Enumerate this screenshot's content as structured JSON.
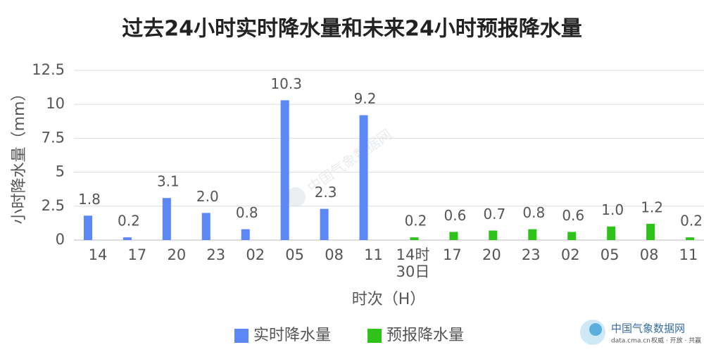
{
  "chart_data": {
    "type": "bar",
    "title": "过去24小时实时降水量和未来24小时预报降水量",
    "x_label": "时次（H）",
    "y_label": "小时降水量（mm）",
    "categories": [
      "14",
      "17",
      "20",
      "23",
      "02",
      "05",
      "08",
      "11",
      "14时\n30日",
      "17",
      "20",
      "23",
      "02",
      "05",
      "08",
      "11"
    ],
    "series": [
      {
        "name": "实时降水量",
        "color": "#5b87f7",
        "values": [
          1.8,
          0.2,
          3.1,
          2.0,
          0.8,
          10.3,
          2.3,
          9.2,
          null,
          null,
          null,
          null,
          null,
          null,
          null,
          null
        ],
        "value_labels": [
          "1.8",
          "0.2",
          "3.1",
          "2.0",
          "0.8",
          "10.3",
          "2.3",
          "9.2",
          null,
          null,
          null,
          null,
          null,
          null,
          null,
          null
        ]
      },
      {
        "name": "预报降水量",
        "color": "#2fc21a",
        "values": [
          null,
          null,
          null,
          null,
          null,
          null,
          null,
          null,
          0.2,
          0.6,
          0.7,
          0.8,
          0.6,
          1.0,
          1.2,
          0.2
        ],
        "value_labels": [
          null,
          null,
          null,
          null,
          null,
          null,
          null,
          null,
          "0.2",
          "0.6",
          "0.7",
          "0.8",
          "0.6",
          "1.0",
          "1.2",
          "0.2"
        ]
      }
    ],
    "ylim": [
      0,
      12.5
    ],
    "yticks": [
      0,
      2.5,
      5,
      7.5,
      10,
      12.5
    ],
    "grid": true,
    "legend": "bottom"
  },
  "watermark": {
    "name": "中国气象数据网",
    "url": "data.cma.cn",
    "slogan": "权威 · 开放 · 共赢"
  }
}
